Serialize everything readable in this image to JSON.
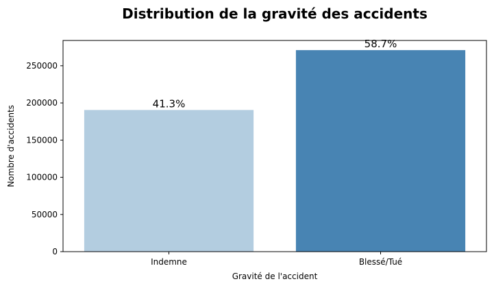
{
  "chart_data": {
    "type": "bar",
    "title": "Distribution de la gravité des accidents",
    "xlabel": "Gravité de l'accident",
    "ylabel": "Nombre d'accidents",
    "categories": [
      "Indemne",
      "Blessé/Tué"
    ],
    "values": [
      190500,
      271000
    ],
    "data_labels": [
      "41.3%",
      "58.7%"
    ],
    "colors": [
      "#b3cde0",
      "#4884b3"
    ],
    "ylim": [
      0,
      284000
    ],
    "yticks": [
      0,
      50000,
      100000,
      150000,
      200000,
      250000
    ],
    "grid": false,
    "legend": "none"
  }
}
